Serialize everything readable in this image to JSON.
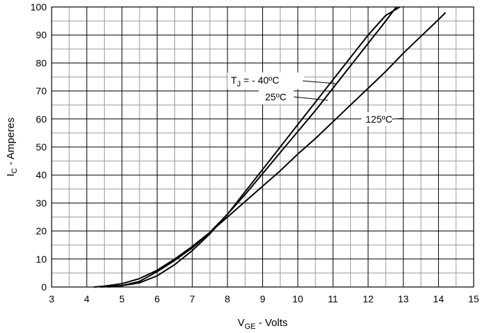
{
  "chart_data": {
    "type": "line",
    "xlabel": {
      "main": "V",
      "sub": "GE",
      "rest": " - Volts"
    },
    "ylabel": {
      "main": "I",
      "sub": "C",
      "rest": " - Amperes"
    },
    "xlim": [
      3,
      15
    ],
    "ylim": [
      0,
      100
    ],
    "xticks": [
      "3",
      "4",
      "5",
      "6",
      "7",
      "8",
      "9",
      "10",
      "11",
      "12",
      "13",
      "14",
      "15"
    ],
    "yticks": [
      "0",
      "10",
      "20",
      "30",
      "40",
      "50",
      "60",
      "70",
      "80",
      "90",
      "100"
    ],
    "grid": {
      "major": true,
      "minor": true,
      "x_minor_step": 0.5,
      "y_minor_step": 5
    },
    "line_color": "#000000",
    "grid_major_color": "#000000",
    "grid_minor_color": "#9a9a9a",
    "series": [
      {
        "name": "- 40ºC",
        "x": [
          4.6,
          5.0,
          5.5,
          6.0,
          6.5,
          7.0,
          7.5,
          8.0,
          8.5,
          9.0,
          9.5,
          10.0,
          10.5,
          11.0,
          11.5,
          12.0,
          12.5,
          12.9
        ],
        "y": [
          0,
          0.5,
          1.5,
          4,
          8,
          13,
          19,
          26,
          34,
          42,
          50,
          58,
          66,
          74,
          82,
          90,
          97,
          100
        ]
      },
      {
        "name": "25ºC",
        "x": [
          4.4,
          5.0,
          5.5,
          6.0,
          6.5,
          7.0,
          7.5,
          8.0,
          8.5,
          9.0,
          9.5,
          10.0,
          10.5,
          11.0,
          11.5,
          12.0,
          12.5,
          12.8
        ],
        "y": [
          0,
          0.5,
          2,
          5.5,
          9.5,
          14,
          19.5,
          26,
          33,
          40.5,
          48,
          55.5,
          63,
          71,
          79,
          87,
          95,
          100
        ]
      },
      {
        "name": "125ºC",
        "x": [
          4.2,
          4.5,
          5.0,
          5.5,
          6.0,
          6.5,
          7.0,
          7.5,
          8.0,
          8.5,
          9.0,
          9.5,
          10.0,
          10.5,
          11.0,
          11.5,
          12.0,
          12.5,
          13.0,
          13.5,
          14.0,
          14.2
        ],
        "y": [
          0,
          0.3,
          1.2,
          3,
          6,
          10,
          14.5,
          19.5,
          25,
          30.5,
          36,
          41.5,
          47.5,
          53,
          59,
          65,
          71,
          77,
          83.5,
          89.5,
          95.5,
          98
        ]
      }
    ],
    "annotations": {
      "tj": {
        "main": "T",
        "sub": "J",
        "rest": "  = - 40ºC"
      },
      "t25": "25ºC",
      "t125": "125ºC"
    }
  }
}
